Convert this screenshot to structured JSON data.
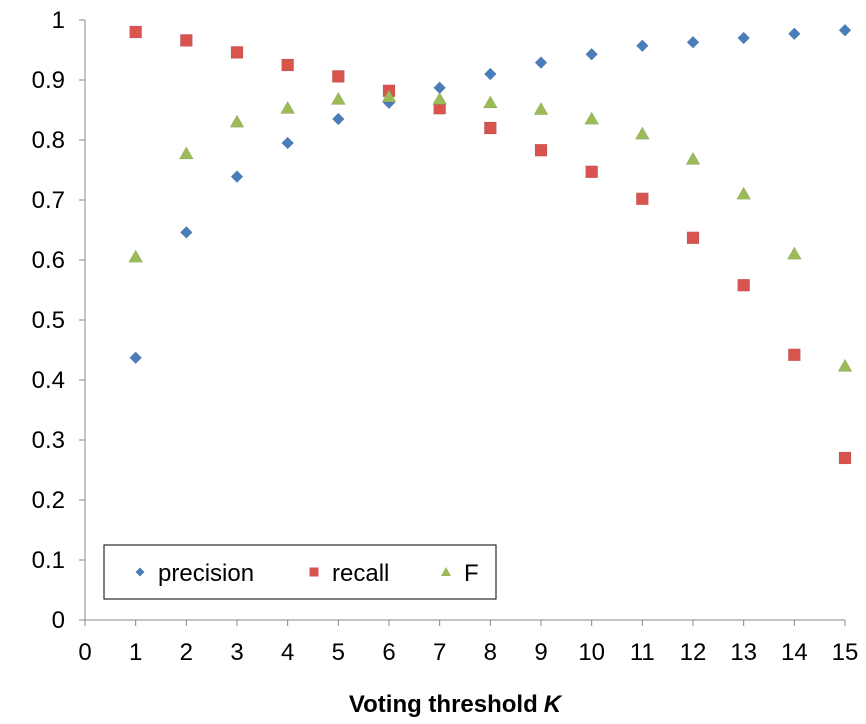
{
  "chart_data": {
    "type": "scatter",
    "title": "",
    "xlabel": "Voting threshold",
    "xlabel_var": "K",
    "ylabel": "",
    "xlim": [
      0,
      15
    ],
    "ylim": [
      0,
      1
    ],
    "xticks": [
      "0",
      "1",
      "2",
      "3",
      "4",
      "5",
      "6",
      "7",
      "8",
      "9",
      "10",
      "11",
      "12",
      "13",
      "14",
      "15"
    ],
    "yticks": [
      "0",
      "0.1",
      "0.2",
      "0.3",
      "0.4",
      "0.5",
      "0.6",
      "0.7",
      "0.8",
      "0.9",
      "1"
    ],
    "grid": false,
    "legend_position": "bottom-left",
    "x": [
      1,
      2,
      3,
      4,
      5,
      6,
      7,
      8,
      9,
      10,
      11,
      12,
      13,
      14,
      15
    ],
    "series": [
      {
        "name": "precision",
        "marker": "diamond",
        "color": "#4a7ebb",
        "values": [
          0.437,
          0.646,
          0.739,
          0.795,
          0.835,
          0.862,
          0.887,
          0.91,
          0.929,
          0.943,
          0.957,
          0.963,
          0.97,
          0.977,
          0.983
        ]
      },
      {
        "name": "recall",
        "marker": "square",
        "color": "#d9534f",
        "values": [
          0.98,
          0.966,
          0.946,
          0.925,
          0.906,
          0.882,
          0.853,
          0.82,
          0.783,
          0.747,
          0.702,
          0.637,
          0.558,
          0.442,
          0.27
        ]
      },
      {
        "name": "F",
        "marker": "triangle",
        "color": "#9bbb59",
        "values": [
          0.605,
          0.777,
          0.83,
          0.853,
          0.868,
          0.872,
          0.868,
          0.862,
          0.851,
          0.835,
          0.81,
          0.768,
          0.71,
          0.61,
          0.423
        ]
      }
    ]
  }
}
